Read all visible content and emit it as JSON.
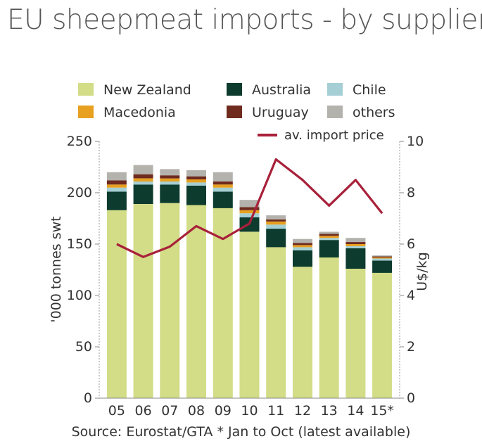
{
  "header": {
    "title": "EU sheepmeat imports - by supplier"
  },
  "footer": {
    "source": "Source: Eurostat/GTA   * Jan to Oct (latest available)"
  },
  "chart_data": {
    "type": "bar",
    "stacked": true,
    "title": "EU sheepmeat imports - by supplier",
    "categories": [
      "05",
      "06",
      "07",
      "08",
      "09",
      "10",
      "11",
      "12",
      "13",
      "14",
      "15*"
    ],
    "ylabel": "'000 tonnes swt",
    "y2label": "U$/kg",
    "ylim": [
      0,
      250
    ],
    "y2lim": [
      0,
      10
    ],
    "yticks": [
      0,
      50,
      100,
      150,
      200,
      250
    ],
    "y2ticks": [
      0,
      2,
      4,
      6,
      8,
      10
    ],
    "legend_position": "top",
    "series": [
      {
        "name": "New Zealand",
        "color": "#d3dc86",
        "values": [
          183,
          189,
          190,
          188,
          185,
          162,
          147,
          128,
          137,
          126,
          122
        ]
      },
      {
        "name": "Australia",
        "color": "#0d3b2e",
        "values": [
          18,
          19,
          18,
          19,
          16,
          14,
          18,
          16,
          17,
          20,
          12
        ]
      },
      {
        "name": "Chile",
        "color": "#a5cfd4",
        "values": [
          4,
          3,
          3,
          3,
          4,
          4,
          4,
          3,
          2,
          2,
          2
        ]
      },
      {
        "name": "Macedonia",
        "color": "#e8a020",
        "values": [
          3,
          3,
          3,
          3,
          3,
          3,
          3,
          2,
          2,
          2,
          1
        ]
      },
      {
        "name": "Uruguay",
        "color": "#6e2b1e",
        "values": [
          4,
          4,
          3,
          3,
          3,
          3,
          2,
          2,
          2,
          2,
          1
        ]
      },
      {
        "name": "others",
        "color": "#b4b2ad",
        "values": [
          8,
          9,
          6,
          6,
          9,
          7,
          4,
          4,
          2,
          4,
          1
        ]
      }
    ],
    "line_series": {
      "name": "av. import price",
      "color": "#a8203a",
      "axis": "right",
      "values": [
        6.0,
        5.5,
        5.9,
        6.7,
        6.2,
        6.8,
        9.3,
        8.5,
        7.5,
        8.5,
        7.2
      ]
    }
  }
}
